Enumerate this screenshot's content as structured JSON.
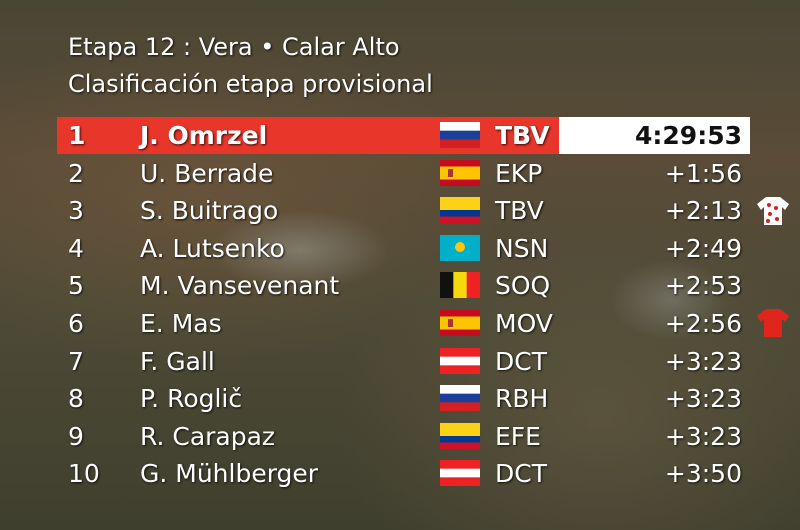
{
  "header": {
    "title": "Etapa 12 : Vera • Calar Alto",
    "subtitle": "Clasificación etapa provisional"
  },
  "table": {
    "rows": [
      [
        "1",
        "J. Omrzel",
        "TBV",
        "4:29:53"
      ],
      [
        "2",
        "U. Berrade",
        "EKP",
        "+1:56"
      ],
      [
        "3",
        "S. Buitrago",
        "TBV",
        "+2:13"
      ],
      [
        "4",
        "A. Lutsenko",
        "NSN",
        "+2:49"
      ],
      [
        "5",
        "M. Vansevenant",
        "SOQ",
        "+2:53"
      ],
      [
        "6",
        "E. Mas",
        "MOV",
        "+2:56"
      ],
      [
        "7",
        "F. Gall",
        "DCT",
        "+3:23"
      ],
      [
        "8",
        "P. Roglič",
        "RBH",
        "+3:23"
      ],
      [
        "9",
        "R. Carapaz",
        "EFE",
        "+3:23"
      ],
      [
        "10",
        "G. Mühlberger",
        "DCT",
        "+3:50"
      ]
    ]
  }
}
